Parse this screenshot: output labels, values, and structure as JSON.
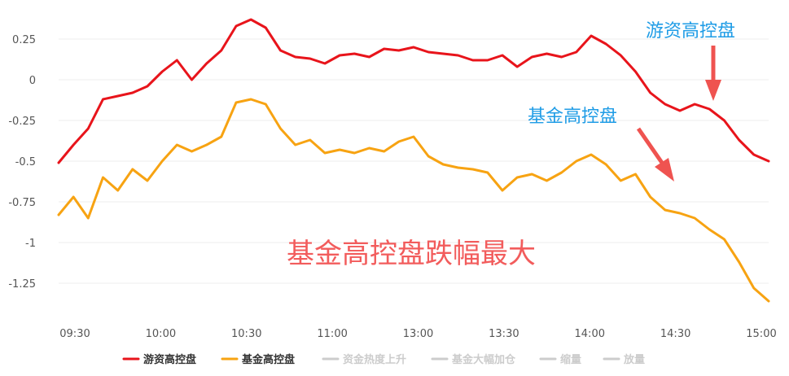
{
  "chart_data": {
    "type": "line",
    "title": "",
    "xlabel": "",
    "ylabel": "",
    "ylim": [
      -1.4,
      0.3
    ],
    "y_ticks": [
      "0.25",
      "0",
      "-0.25",
      "-0.5",
      "-0.75",
      "-1",
      "-1.25"
    ],
    "y_tick_values": [
      0.25,
      0,
      -0.25,
      -0.5,
      -0.75,
      -1,
      -1.25
    ],
    "x_ticks": [
      "09:30",
      "10:00",
      "10:30",
      "11:00",
      "13:00",
      "13:30",
      "14:00",
      "14:30",
      "15:00"
    ],
    "grid": true,
    "legend_position": "bottom",
    "x": [
      "09:30",
      "09:35",
      "09:40",
      "09:45",
      "09:50",
      "09:55",
      "10:00",
      "10:05",
      "10:10",
      "10:15",
      "10:20",
      "10:25",
      "10:30",
      "10:35",
      "10:40",
      "10:45",
      "10:50",
      "10:55",
      "11:00",
      "11:05",
      "11:10",
      "11:15",
      "11:20",
      "11:25",
      "13:00",
      "13:05",
      "13:10",
      "13:15",
      "13:20",
      "13:25",
      "13:30",
      "13:35",
      "13:40",
      "13:45",
      "13:50",
      "13:55",
      "14:00",
      "14:05",
      "14:10",
      "14:15",
      "14:20",
      "14:25",
      "14:30",
      "14:35",
      "14:40",
      "14:45",
      "14:50",
      "14:55",
      "15:00"
    ],
    "series": [
      {
        "name": "游资高控盘",
        "color": "#e8141b",
        "values": [
          -0.51,
          -0.4,
          -0.3,
          -0.12,
          -0.1,
          -0.08,
          -0.04,
          0.05,
          0.12,
          0.0,
          0.1,
          0.18,
          0.33,
          0.37,
          0.32,
          0.18,
          0.14,
          0.13,
          0.1,
          0.15,
          0.16,
          0.14,
          0.19,
          0.18,
          0.2,
          0.17,
          0.16,
          0.15,
          0.12,
          0.12,
          0.15,
          0.08,
          0.14,
          0.16,
          0.14,
          0.17,
          0.27,
          0.22,
          0.15,
          0.05,
          -0.08,
          -0.15,
          -0.19,
          -0.15,
          -0.18,
          -0.25,
          -0.37,
          -0.46,
          -0.5
        ]
      },
      {
        "name": "基金高控盘",
        "color": "#f7a312",
        "values": [
          -0.83,
          -0.72,
          -0.85,
          -0.6,
          -0.68,
          -0.55,
          -0.62,
          -0.5,
          -0.4,
          -0.44,
          -0.4,
          -0.35,
          -0.14,
          -0.12,
          -0.15,
          -0.3,
          -0.4,
          -0.37,
          -0.45,
          -0.43,
          -0.45,
          -0.42,
          -0.44,
          -0.38,
          -0.35,
          -0.47,
          -0.52,
          -0.54,
          -0.55,
          -0.57,
          -0.68,
          -0.6,
          -0.58,
          -0.62,
          -0.57,
          -0.5,
          -0.46,
          -0.52,
          -0.62,
          -0.58,
          -0.72,
          -0.8,
          -0.82,
          -0.85,
          -0.92,
          -0.98,
          -1.12,
          -1.28,
          -1.36
        ]
      }
    ],
    "legend": [
      {
        "label": "游资高控盘",
        "color": "#e8141b",
        "active": true
      },
      {
        "label": "基金高控盘",
        "color": "#f7a312",
        "active": true
      },
      {
        "label": "资金热度上升",
        "color": "#cccccc",
        "active": false
      },
      {
        "label": "基金大幅加仓",
        "color": "#cccccc",
        "active": false
      },
      {
        "label": "缩量",
        "color": "#cccccc",
        "active": false
      },
      {
        "label": "放量",
        "color": "#cccccc",
        "active": false
      }
    ],
    "annotations": {
      "youzi": {
        "text": "游资高控盘",
        "color": "#1f9ce6"
      },
      "fund": {
        "text": "基金高控盘",
        "color": "#1f9ce6"
      },
      "conclusion": {
        "text": "基金高控盘跌幅最大",
        "color": "#f25c5c"
      },
      "arrow_color": "#ef5350"
    }
  }
}
